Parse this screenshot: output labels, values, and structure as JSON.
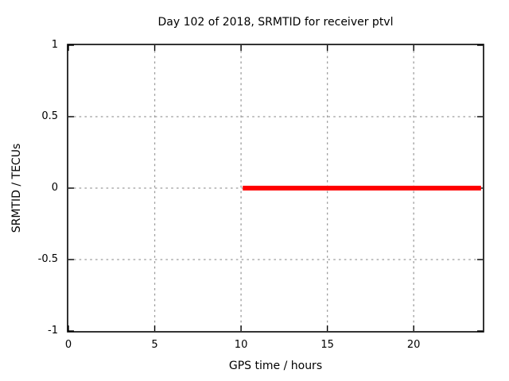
{
  "chart_data": {
    "type": "line",
    "title": "Day 102 of 2018, SRMTID for receiver ptvl",
    "xlabel": "GPS time / hours",
    "ylabel": "SRMTID / TECUs",
    "xlim": [
      0,
      24
    ],
    "ylim": [
      -1,
      1
    ],
    "x_ticks": {
      "values": [
        0,
        5,
        10,
        15,
        20
      ],
      "labels": [
        "0",
        "5",
        "10",
        "15",
        "20"
      ]
    },
    "y_ticks": {
      "values": [
        1,
        0.5,
        0,
        -0.5,
        -1
      ],
      "labels": [
        "1",
        "0.5",
        "0",
        "-0.5",
        "-1"
      ]
    },
    "grid": true,
    "grid_style": "dashed",
    "grid_color": "#9c9c9c",
    "border_color": "#000000",
    "background_color": "#ffffff",
    "legend": "none",
    "series": [
      {
        "name": "SRMTID",
        "color": "#ff0000",
        "line_width": 6,
        "x": [
          10.1,
          23.9
        ],
        "y": [
          0,
          0
        ]
      }
    ]
  }
}
